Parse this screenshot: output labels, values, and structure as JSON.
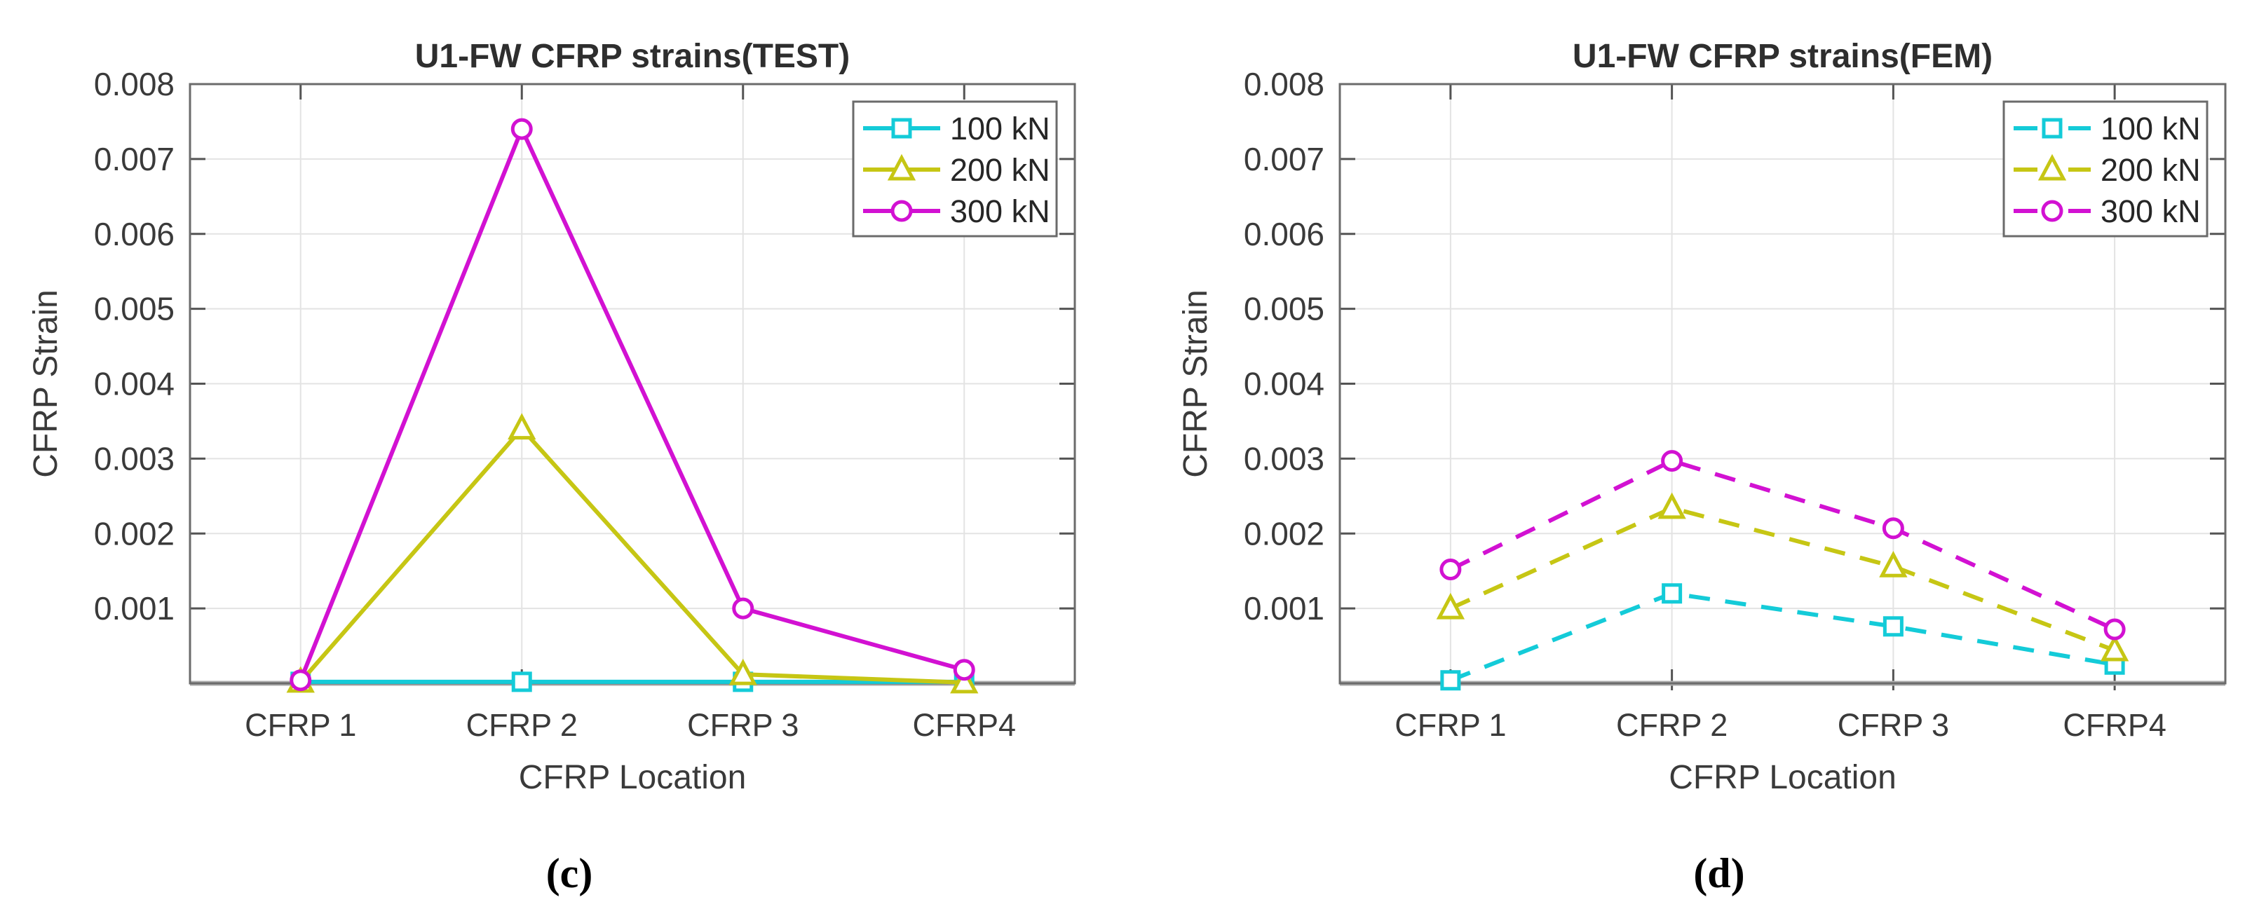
{
  "figure": {
    "type": "matlab-style line charts, side-by-side subfigures",
    "background": "#ffffff",
    "text_color": "#3a3a3a",
    "sublabels": [
      "(c)",
      "(d)"
    ]
  },
  "chart_data": [
    {
      "id": "test",
      "type": "line",
      "title": "U1-FW CFRP strains(TEST)",
      "xlabel": "CFRP Location",
      "ylabel": "CFRP Strain",
      "sublabel": "(c)",
      "categories": [
        "CFRP 1",
        "CFRP 2",
        "CFRP 3",
        "CFRP4"
      ],
      "ylim": [
        0,
        0.008
      ],
      "ytick_step": 0.001,
      "ytick_labels": [
        "0.001",
        "0.002",
        "0.003",
        "0.004",
        "0.005",
        "0.006",
        "0.007",
        "0.008"
      ],
      "grid": true,
      "line_style": "solid",
      "legend_position": "northeast",
      "series": [
        {
          "name": "100 kN",
          "color": "#14CBD8",
          "marker": "square",
          "values": [
            2e-05,
            2e-05,
            2e-05,
            2e-05
          ]
        },
        {
          "name": "200 kN",
          "color": "#C6C614",
          "marker": "triangle",
          "values": [
            2e-05,
            0.0034,
            0.00012,
            1e-05
          ]
        },
        {
          "name": "300 kN",
          "color": "#D211D2",
          "marker": "circle",
          "values": [
            4e-05,
            0.0074,
            0.001,
            0.00018
          ]
        }
      ]
    },
    {
      "id": "fem",
      "type": "line",
      "title": "U1-FW CFRP strains(FEM)",
      "xlabel": "CFRP Location",
      "ylabel": "CFRP Strain",
      "sublabel": "(d)",
      "categories": [
        "CFRP 1",
        "CFRP 2",
        "CFRP 3",
        "CFRP4"
      ],
      "ylim": [
        0,
        0.008
      ],
      "ytick_step": 0.001,
      "ytick_labels": [
        "0.001",
        "0.002",
        "0.003",
        "0.004",
        "0.005",
        "0.006",
        "0.007",
        "0.008"
      ],
      "grid": true,
      "line_style": "dashed",
      "legend_position": "northeast",
      "series": [
        {
          "name": "100 kN",
          "color": "#14CBD8",
          "marker": "square",
          "values": [
            4e-05,
            0.0012,
            0.00076,
            0.00025
          ]
        },
        {
          "name": "200 kN",
          "color": "#C6C614",
          "marker": "triangle",
          "values": [
            0.001,
            0.00234,
            0.00156,
            0.00044
          ]
        },
        {
          "name": "300 kN",
          "color": "#D211D2",
          "marker": "circle",
          "values": [
            0.00152,
            0.00297,
            0.00207,
            0.00072
          ]
        }
      ]
    }
  ]
}
